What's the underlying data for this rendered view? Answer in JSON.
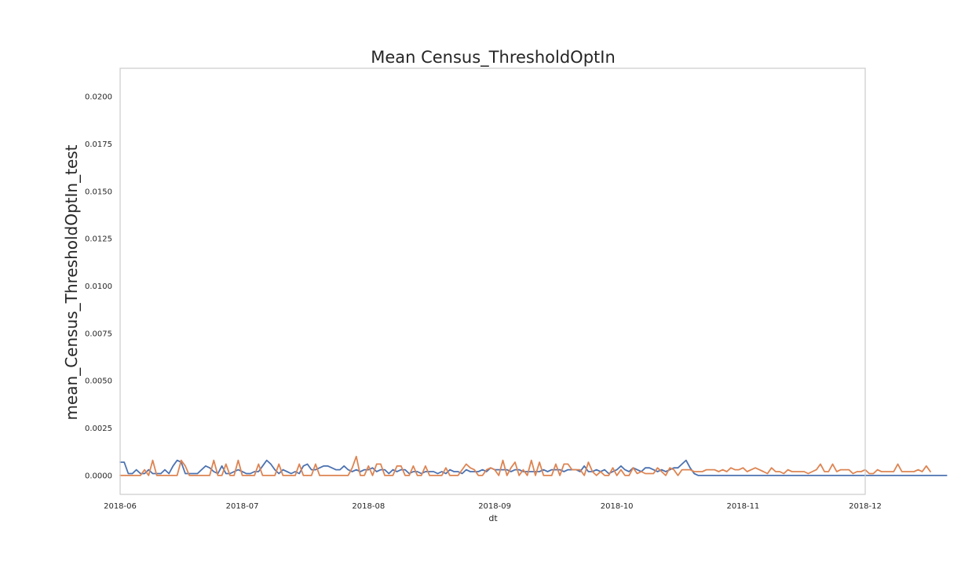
{
  "chart_data": {
    "type": "line",
    "title": "Mean Census_ThresholdOptIn",
    "xlabel": "dt",
    "ylabel": "mean_Census_ThresholdOptIn_test",
    "xlim": [
      "2018-06-01",
      "2018-12-01"
    ],
    "ylim": [
      -0.001,
      0.0215
    ],
    "grid": false,
    "x_ticks": [
      "2018-06",
      "2018-07",
      "2018-08",
      "2018-09",
      "2018-10",
      "2018-11",
      "2018-12"
    ],
    "y_ticks": [
      "0.0000",
      "0.0025",
      "0.0050",
      "0.0075",
      "0.0100",
      "0.0125",
      "0.0150",
      "0.0175",
      "0.0200"
    ],
    "series": [
      {
        "color": "#4c72b0",
        "start": "2018-06-01",
        "values": [
          0.0007,
          0.0007,
          0.0001,
          0.0001,
          0.0003,
          0.0001,
          0.0001,
          0.0003,
          0.0001,
          0.0001,
          0.0001,
          0.0003,
          0.0001,
          0.0005,
          0.0008,
          0.0007,
          0.0001,
          0.0001,
          0.0001,
          0.0001,
          0.0003,
          0.0005,
          0.0004,
          0.0002,
          0.0001,
          0.0005,
          0.0001,
          0.0001,
          0.0002,
          0.0003,
          0.0002,
          0.0001,
          0.0001,
          0.0002,
          0.0002,
          0.0005,
          0.0008,
          0.0006,
          0.0003,
          0.0001,
          0.0003,
          0.0002,
          0.0001,
          0.0002,
          0.0001,
          0.0005,
          0.0006,
          0.0003,
          0.0003,
          0.0004,
          0.0005,
          0.0005,
          0.0004,
          0.0003,
          0.0003,
          0.0005,
          0.0003,
          0.0002,
          0.0003,
          0.0002,
          0.0003,
          0.0003,
          0.0004,
          0.0002,
          0.0003,
          0.0003,
          0.0001,
          0.0003,
          0.0002,
          0.0003,
          0.0003,
          0.0001,
          0.0002,
          0.0002,
          0.0001,
          0.0002,
          0.0002,
          0.0002,
          0.0001,
          0.0002,
          0.0001,
          0.0003,
          0.0002,
          0.0002,
          0.0001,
          0.0003,
          0.0002,
          0.0002,
          0.0002,
          0.0003,
          0.0002,
          0.0004,
          0.0003,
          0.0003,
          0.0003,
          0.0003,
          0.0002,
          0.0003,
          0.0003,
          0.0002,
          0.0002,
          0.0002,
          0.0002,
          0.0002,
          0.0003,
          0.0002,
          0.0003,
          0.0003,
          0.0003,
          0.0002,
          0.0003,
          0.0003,
          0.0003,
          0.0002,
          0.0005,
          0.0002,
          0.0002,
          0.0003,
          0.0002,
          0.0003,
          0.0001,
          0.0002,
          0.0003,
          0.0005,
          0.0003,
          0.0002,
          0.0004,
          0.0003,
          0.0002,
          0.0004,
          0.0004,
          0.0003,
          0.0002,
          0.0003,
          0.0002,
          0.0003,
          0.0004,
          0.0004,
          0.0006,
          0.0008,
          0.0004,
          0.0001,
          0.0,
          0.0,
          0.0,
          0.0,
          0.0,
          0.0,
          0.0,
          0.0,
          0.0,
          0.0,
          0.0,
          0.0,
          0.0,
          0.0,
          0.0,
          0.0,
          0.0,
          0.0,
          0.0,
          0.0,
          0.0,
          0.0,
          0.0,
          0.0,
          0.0,
          0.0,
          0.0,
          0.0,
          0.0,
          0.0,
          0.0,
          0.0,
          0.0,
          0.0,
          0.0,
          0.0,
          0.0,
          0.0,
          0.0,
          0.0,
          0.0,
          0.0,
          0.0,
          0.0,
          0.0,
          0.0,
          0.0,
          0.0,
          0.0,
          0.0,
          0.0,
          0.0,
          0.0,
          0.0,
          0.0,
          0.0,
          0.0,
          0.0,
          0.0,
          0.0,
          0.0,
          0.0
        ]
      },
      {
        "color": "#dd8452",
        "start": "2018-06-01",
        "values": [
          0.0,
          0.0,
          0.0,
          0.0,
          0.0,
          0.0,
          0.0003,
          0.0,
          0.0008,
          0.0,
          0.0,
          0.0,
          0.0,
          0.0,
          0.0,
          0.0008,
          0.0005,
          0.0,
          0.0,
          0.0,
          0.0,
          0.0,
          0.0,
          0.0008,
          0.0,
          0.0,
          0.0006,
          0.0,
          0.0,
          0.0008,
          0.0,
          0.0,
          0.0,
          0.0,
          0.0006,
          0.0,
          0.0,
          0.0,
          0.0,
          0.0006,
          0.0,
          0.0,
          0.0,
          0.0,
          0.0006,
          0.0,
          0.0,
          0.0,
          0.0006,
          0.0,
          0.0,
          0.0,
          0.0,
          0.0,
          0.0,
          0.0,
          0.0,
          0.0004,
          0.001,
          0.0,
          0.0,
          0.0005,
          0.0,
          0.0006,
          0.0006,
          0.0,
          0.0,
          0.0,
          0.0005,
          0.0005,
          0.0,
          0.0,
          0.0005,
          0.0,
          0.0,
          0.0005,
          0.0,
          0.0,
          0.0,
          0.0,
          0.0004,
          0.0,
          0.0,
          0.0,
          0.0003,
          0.0006,
          0.0004,
          0.0003,
          0.0,
          0.0,
          0.0003,
          0.0004,
          0.0003,
          0.0,
          0.0008,
          0.0,
          0.0004,
          0.0007,
          0.0,
          0.0003,
          0.0,
          0.0008,
          0.0,
          0.0007,
          0.0,
          0.0,
          0.0,
          0.0006,
          0.0,
          0.0006,
          0.0006,
          0.0003,
          0.0003,
          0.0003,
          0.0,
          0.0007,
          0.0002,
          0.0,
          0.0002,
          0.0,
          0.0,
          0.0004,
          0.0,
          0.0003,
          0.0,
          0.0,
          0.0004,
          0.0001,
          0.0002,
          0.0001,
          0.0001,
          0.0001,
          0.0004,
          0.0002,
          0.0,
          0.0004,
          0.0003,
          0.0,
          0.0003,
          0.0003,
          0.0003,
          0.0002,
          0.0002,
          0.0002,
          0.0003,
          0.0003,
          0.0003,
          0.0002,
          0.0003,
          0.0002,
          0.0004,
          0.0003,
          0.0003,
          0.0004,
          0.0002,
          0.0003,
          0.0004,
          0.0003,
          0.0002,
          0.0001,
          0.0004,
          0.0002,
          0.0002,
          0.0001,
          0.0003,
          0.0002,
          0.0002,
          0.0002,
          0.0002,
          0.0001,
          0.0002,
          0.0003,
          0.0006,
          0.0002,
          0.0002,
          0.0006,
          0.0002,
          0.0003,
          0.0003,
          0.0003,
          0.0001,
          0.0002,
          0.0002,
          0.0003,
          0.0001,
          0.0001,
          0.0003,
          0.0002,
          0.0002,
          0.0002,
          0.0002,
          0.0006,
          0.0002,
          0.0002,
          0.0002,
          0.0002,
          0.0003,
          0.0002,
          0.0005,
          0.0002
        ]
      }
    ]
  }
}
